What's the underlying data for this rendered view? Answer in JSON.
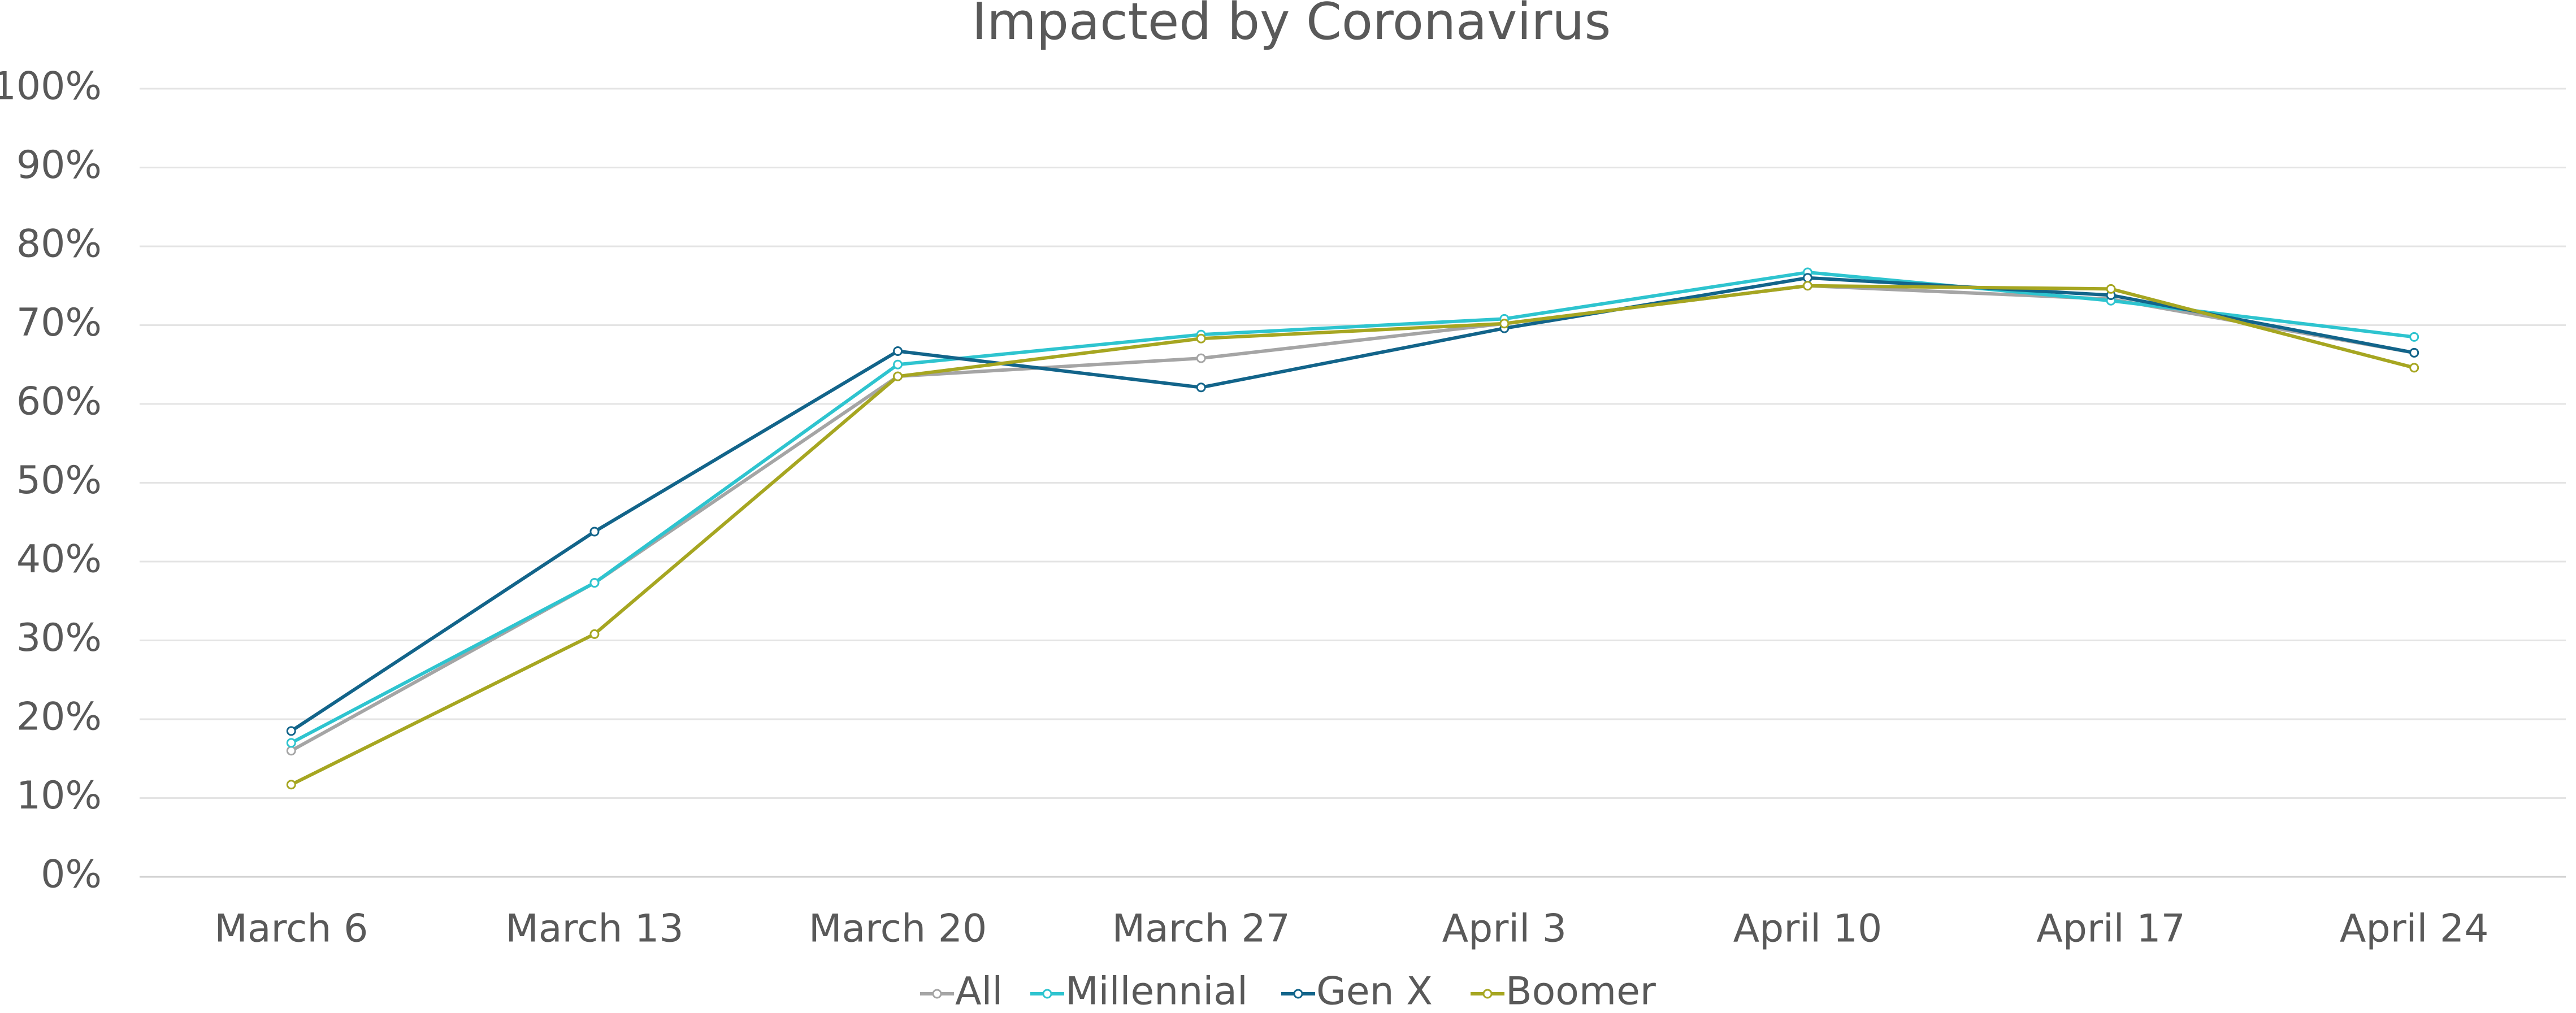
{
  "chart_data": {
    "type": "line",
    "title": "Impacted by Coronavirus",
    "categories": [
      "March 6",
      "March 13",
      "March 20",
      "March 27",
      "April 3",
      "April 10",
      "April 17",
      "April 24"
    ],
    "series": [
      {
        "name": "All",
        "color": "#a5a5a5",
        "values": [
          16,
          37.3,
          63.5,
          65.8,
          70.2,
          75,
          73.3,
          66.5
        ]
      },
      {
        "name": "Millennial",
        "color": "#2ec4cf",
        "values": [
          17,
          37.3,
          65,
          68.8,
          70.8,
          76.7,
          73.1,
          68.5
        ]
      },
      {
        "name": "Gen X",
        "color": "#12648a",
        "values": [
          18.5,
          43.8,
          66.7,
          62.1,
          69.6,
          76,
          73.8,
          66.5
        ]
      },
      {
        "name": "Boomer",
        "color": "#a6a621",
        "values": [
          11.7,
          30.8,
          63.5,
          68.3,
          70.2,
          75,
          74.6,
          64.6
        ]
      }
    ],
    "ylim": [
      0,
      100
    ],
    "yticks": [
      {
        "value": 0,
        "label": "0%"
      },
      {
        "value": 10,
        "label": "10%"
      },
      {
        "value": 20,
        "label": "20%"
      },
      {
        "value": 30,
        "label": "30%"
      },
      {
        "value": 40,
        "label": "40%"
      },
      {
        "value": 50,
        "label": "50%"
      },
      {
        "value": 60,
        "label": "60%"
      },
      {
        "value": 70,
        "label": "70%"
      },
      {
        "value": 80,
        "label": "80%"
      },
      {
        "value": 90,
        "label": "90%"
      },
      {
        "value": 100,
        "label": "100%"
      }
    ],
    "grid": true,
    "legend": "bottom"
  }
}
